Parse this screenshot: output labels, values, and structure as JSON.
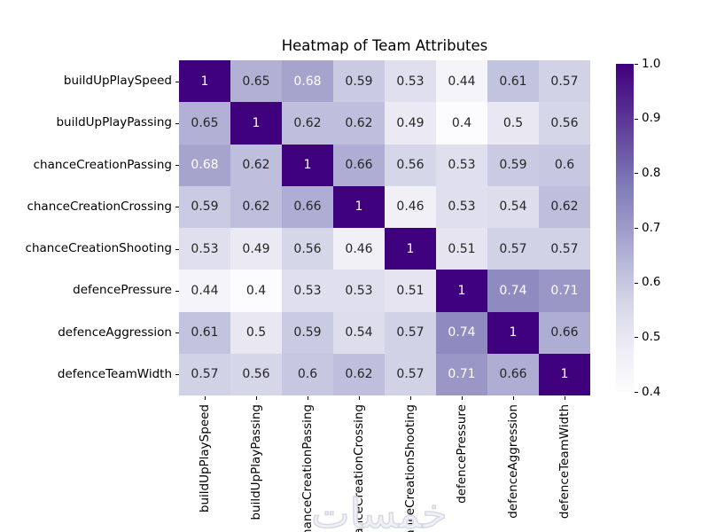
{
  "title": "Heatmap of Team Attributes",
  "watermark_text": "خمسات",
  "chart_data": {
    "type": "heatmap",
    "title": "Heatmap of Team Attributes",
    "categories": [
      "buildUpPlaySpeed",
      "buildUpPlayPassing",
      "chanceCreationPassing",
      "chanceCreationCrossing",
      "chanceCreationShooting",
      "defencePressure",
      "defenceAggression",
      "defenceTeamWidth"
    ],
    "matrix": [
      [
        1,
        0.65,
        0.68,
        0.59,
        0.53,
        0.44,
        0.61,
        0.57
      ],
      [
        0.65,
        1,
        0.62,
        0.62,
        0.49,
        0.4,
        0.5,
        0.56
      ],
      [
        0.68,
        0.62,
        1,
        0.66,
        0.56,
        0.53,
        0.59,
        0.6
      ],
      [
        0.59,
        0.62,
        0.66,
        1,
        0.46,
        0.53,
        0.54,
        0.62
      ],
      [
        0.53,
        0.49,
        0.56,
        0.46,
        1,
        0.51,
        0.57,
        0.57
      ],
      [
        0.44,
        0.4,
        0.53,
        0.53,
        0.51,
        1,
        0.74,
        0.71
      ],
      [
        0.61,
        0.5,
        0.59,
        0.54,
        0.57,
        0.74,
        1,
        0.66
      ],
      [
        0.57,
        0.56,
        0.6,
        0.62,
        0.57,
        0.71,
        0.66,
        1
      ]
    ],
    "vmin": 0.4,
    "vmax": 1.0,
    "colormap_name": "Purples",
    "colormap_anchors": [
      "#fcfbfd",
      "#efedf5",
      "#dadaeb",
      "#bcbddc",
      "#9e9ac8",
      "#807dba",
      "#6a51a3",
      "#54278f",
      "#3f007d"
    ],
    "colorbar_ticks": [
      1.0,
      0.9,
      0.8,
      0.7,
      0.6,
      0.5,
      0.4
    ],
    "annotation_colors": {
      "dark": "#262626",
      "light": "#ffffff"
    },
    "grid": false,
    "legend_position": "right-colorbar"
  }
}
